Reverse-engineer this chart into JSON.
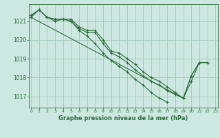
{
  "title": "Graphe pression niveau de la mer (hPa)",
  "bg_color": "#cce8e0",
  "grid_color": "#aaccbc",
  "line_color": "#2d6b3c",
  "xlim": [
    -0.3,
    23.3
  ],
  "ylim": [
    1016.4,
    1021.9
  ],
  "xticks": [
    0,
    1,
    2,
    3,
    4,
    5,
    6,
    7,
    8,
    9,
    10,
    11,
    12,
    13,
    14,
    15,
    16,
    17,
    18,
    19,
    20,
    21,
    22,
    23
  ],
  "yticks": [
    1017,
    1018,
    1019,
    1020,
    1021
  ],
  "series": [
    [
      1021.3,
      1021.6,
      1021.2,
      1021.0,
      1021.1,
      1021.0,
      1020.6,
      1020.4,
      1020.4,
      1019.8,
      1019.3,
      1019.1,
      1018.8,
      1018.4,
      1018.1,
      1017.8,
      1017.6,
      1017.3,
      1017.1,
      1016.9,
      1018.1,
      1018.8,
      1018.8,
      null
    ],
    [
      1021.3,
      1021.6,
      1021.2,
      1021.1,
      1021.1,
      1021.1,
      1020.7,
      1020.5,
      1020.5,
      1020.0,
      1019.4,
      1019.3,
      1019.0,
      1018.7,
      1018.3,
      1018.0,
      1017.8,
      1017.5,
      1017.2,
      1016.9,
      1017.8,
      1018.8,
      1018.8,
      null
    ],
    [
      1021.2,
      1021.6,
      1021.2,
      1021.1,
      1021.1,
      1021.0,
      1020.5,
      1020.2,
      1019.8,
      1019.3,
      1018.9,
      1018.6,
      1018.3,
      1017.9,
      1017.6,
      1017.2,
      1016.9,
      1016.7,
      null,
      null,
      null,
      null,
      null,
      null
    ],
    [
      1021.2,
      null,
      null,
      null,
      null,
      null,
      null,
      null,
      null,
      null,
      null,
      null,
      null,
      null,
      null,
      null,
      null,
      null,
      null,
      1016.9,
      1018.1,
      1018.8,
      1018.8,
      null
    ]
  ]
}
